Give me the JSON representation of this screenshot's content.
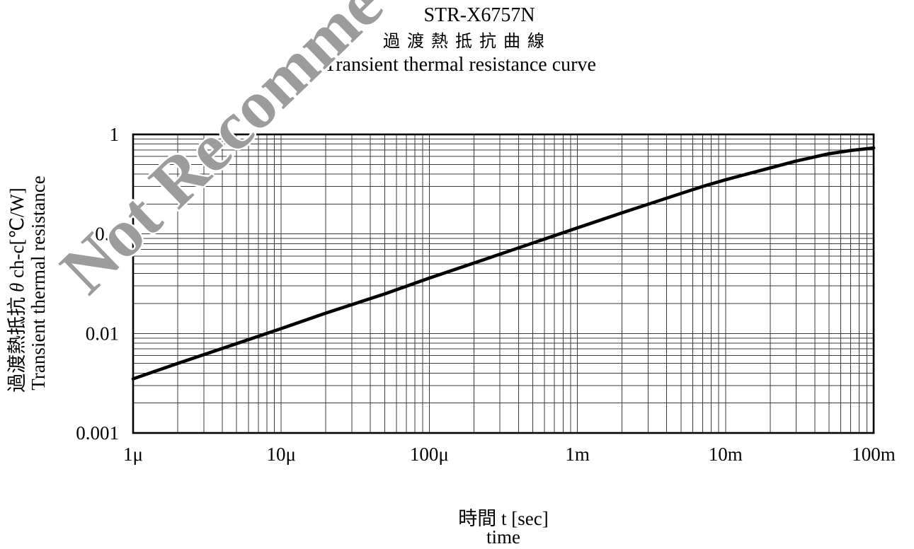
{
  "watermark": "Not Recomme",
  "colors": {
    "curve": "#000000",
    "grid": "#3a3a3a",
    "frame": "#000000",
    "watermark": "#9c9c9c"
  },
  "chart_data": {
    "type": "line",
    "title": "STR-X6757N",
    "subtitle": [
      "過渡熱抵抗曲線",
      "Transient thermal resistance curve"
    ],
    "xlabel": [
      "時間 t [sec]",
      "time"
    ],
    "ylabel": {
      "jp_prefix": "過渡熱抵抗",
      "symbol": "θ",
      "jp_suffix": "ch-c[℃/W]",
      "en": "Transient thermal resistance"
    },
    "xscale": "log",
    "yscale": "log",
    "xlim": [
      1e-06,
      0.1
    ],
    "ylim": [
      0.001,
      1
    ],
    "grid": true,
    "x_tick_values": [
      1e-06,
      1e-05,
      0.0001,
      0.001,
      0.01,
      0.1
    ],
    "x_tick_labels": [
      "1μ",
      "10μ",
      "100μ",
      "1m",
      "10m",
      "100m"
    ],
    "y_tick_values": [
      0.001,
      0.01,
      0.1,
      1
    ],
    "y_tick_labels": [
      "0.001",
      "0.01",
      "0.1",
      "1"
    ],
    "series": [
      {
        "x": [
          1e-06,
          2e-06,
          5e-06,
          1e-05,
          2e-05,
          5e-05,
          0.0001,
          0.0002,
          0.0005,
          0.001,
          0.002,
          0.005,
          0.007,
          0.01,
          0.02,
          0.03,
          0.05,
          0.07,
          0.1
        ],
        "y": [
          0.0035,
          0.005,
          0.0079,
          0.0112,
          0.016,
          0.025,
          0.036,
          0.051,
          0.081,
          0.115,
          0.163,
          0.255,
          0.3,
          0.35,
          0.46,
          0.54,
          0.64,
          0.69,
          0.73
        ]
      }
    ]
  }
}
